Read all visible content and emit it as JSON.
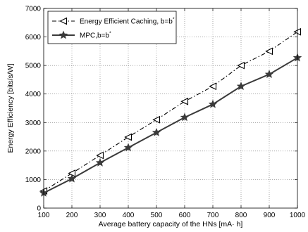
{
  "chart_data": {
    "type": "line",
    "xlabel": "Average battery capacity of the HNs [mA· h]",
    "ylabel": "Energy Efficiency [bits/s/W]",
    "xlim": [
      100,
      1000
    ],
    "ylim": [
      0,
      7000
    ],
    "x_ticks": [
      100,
      200,
      300,
      400,
      500,
      600,
      700,
      800,
      900,
      1000
    ],
    "y_ticks": [
      0,
      1000,
      2000,
      3000,
      4000,
      5000,
      6000,
      7000
    ],
    "grid": true,
    "legend_position": "top-left",
    "x": [
      100,
      200,
      300,
      400,
      500,
      600,
      700,
      800,
      900,
      1000
    ],
    "series": [
      {
        "name": "Energy Efficient Caching, b=b*",
        "legend_main": "Energy Efficient Caching, b=b",
        "legend_sup": "*",
        "values": [
          600,
          1220,
          1850,
          2490,
          3100,
          3740,
          4270,
          5000,
          5500,
          6180
        ],
        "style": "dash-dot",
        "marker": "triangle-left",
        "color": "#000000"
      },
      {
        "name": "MPC,b=b*",
        "legend_main": "MPC,b=b",
        "legend_sup": "*",
        "values": [
          530,
          1030,
          1590,
          2120,
          2650,
          3180,
          3640,
          4270,
          4690,
          5270
        ],
        "style": "solid",
        "marker": "star",
        "color": "#3a3a3a"
      }
    ]
  }
}
